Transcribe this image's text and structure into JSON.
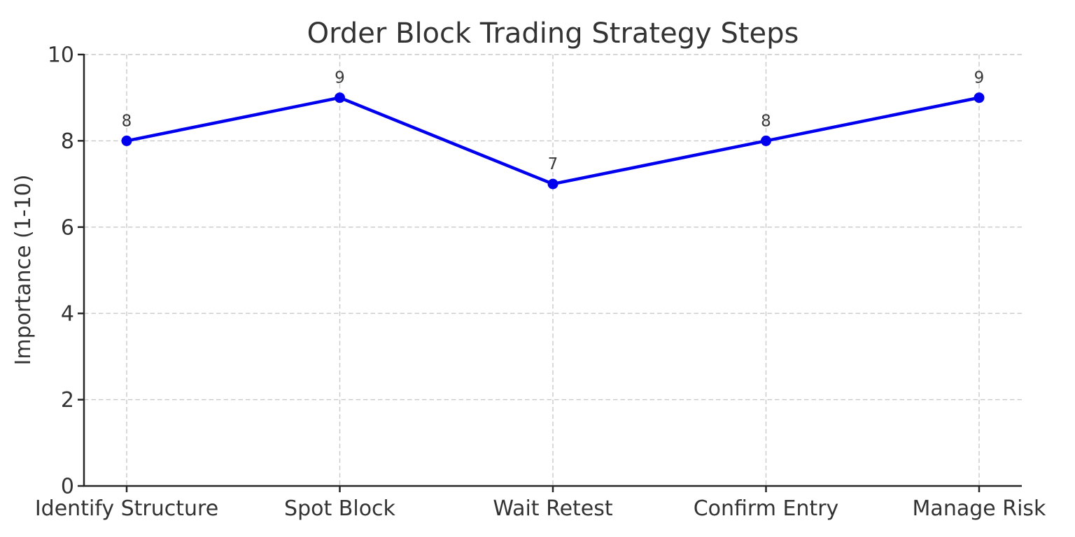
{
  "figure": {
    "background": "#ffffff"
  },
  "chart_data": {
    "type": "line",
    "title": "Order Block Trading Strategy Steps",
    "xlabel": "",
    "ylabel": "Importance (1-10)",
    "categories": [
      "Identify Structure",
      "Spot Block",
      "Wait Retest",
      "Confirm Entry",
      "Manage Risk"
    ],
    "series": [
      {
        "name": "Importance",
        "values": [
          8,
          9,
          7,
          8,
          9
        ],
        "data_labels": [
          "8",
          "9",
          "7",
          "8",
          "9"
        ],
        "color": "#0000ee",
        "marker": "circle",
        "line_width": 4.5,
        "marker_radius": 7.5
      }
    ],
    "ylim": [
      0,
      10
    ],
    "yticks": [
      0,
      2,
      4,
      6,
      8,
      10
    ],
    "grid": {
      "visible": true,
      "style": "dashed",
      "color": "#c9c9c9"
    },
    "legend": "none",
    "axis_color": "#262626",
    "text_color": "#333333",
    "label_color": "#3a3a3a"
  }
}
